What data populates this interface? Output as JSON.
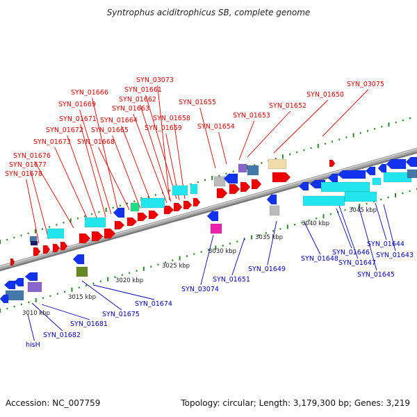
{
  "title": "Syntrophus aciditrophicus SB, complete genome",
  "accession_text": "Accession: NC_007759",
  "summary_text": "Topology: circular; Length: 3,179,300 bp; Genes: 3,219",
  "colors": {
    "red_label": "#dd0000",
    "blue_label": "#0000bb",
    "backbone": "#888888",
    "tick_green": "#228b22",
    "cds_red": "#ee0000",
    "cds_blue": "#1133ee",
    "rna_cyan": "#22e5ee",
    "pseudo_gray": "#bbbbbb",
    "misc_khaki": "#eeddaa",
    "misc_purple": "#8866cc",
    "misc_magenta": "#ee22aa",
    "misc_olive": "#668822",
    "misc_green": "#22dd88",
    "misc_steel": "#4477aa"
  },
  "scale_ticks": [
    "3010 kbp",
    "3015 kbp",
    "3020 kbp",
    "3025 kbp",
    "3030 kbp",
    "3035 kbp",
    "3040 kbp",
    "3045 kbp"
  ],
  "red_labels": [
    "SYN_03073",
    "SYN_01666",
    "SYN_01661",
    "SYN_01669",
    "SYN_01662",
    "SYN_01663",
    "SYN_01671",
    "SYN_01664",
    "SYN_01658",
    "SYN_01672",
    "SYN_01665",
    "SYN_01659",
    "SYN_01673",
    "SYN_01668",
    "SYN_01676",
    "SYN_01677",
    "SYN_01678",
    "SYN_01655",
    "SYN_01654",
    "SYN_01653",
    "SYN_01652",
    "SYN_01650",
    "SYN_03075"
  ],
  "blue_labels": [
    "SYN_01644",
    "SYN_01643",
    "SYN_01646",
    "SYN_01647",
    "SYN_01645",
    "SYN_01648",
    "SYN_01649",
    "SYN_01651",
    "SYN_03074",
    "SYN_01674",
    "SYN_01675",
    "SYN_01681",
    "SYN_01682",
    "hisH"
  ]
}
